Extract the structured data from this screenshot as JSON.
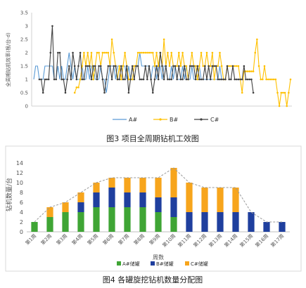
{
  "chart_data": [
    {
      "type": "line",
      "caption": "图3 项目全周期钻机工效图",
      "ylabel": "全周期钻机效率(根/台·d)",
      "ylim": [
        0,
        3.5
      ],
      "yticks": [
        0,
        0.5,
        1,
        1.5,
        2,
        2.5,
        3,
        3.5
      ],
      "grid": false,
      "legend_position": "bottom",
      "series": [
        {
          "name": "A#",
          "color": "#5b9bd5",
          "marker": "none",
          "values": [
            1,
            1.5,
            1.5,
            1,
            1,
            1,
            1.5,
            1.5,
            1.5,
            1.5,
            1.5,
            1,
            1,
            1.5,
            1,
            1.5,
            1,
            1,
            1.5,
            2,
            1.5,
            1,
            1.5,
            1,
            1,
            1,
            1.5,
            1,
            1,
            1.5,
            1,
            1.5,
            1.5,
            1,
            1,
            1,
            1.5,
            1,
            1,
            0.5,
            1,
            1.5,
            1.5,
            1.5,
            1,
            1.5,
            1.5,
            1.5,
            1.5,
            1.5,
            1,
            1.5,
            1,
            1.5,
            1.5,
            1.5,
            1.5,
            2,
            1.5,
            1.5,
            1.5,
            1.5,
            1.5,
            1,
            1.5,
            1.5,
            1,
            1.5,
            1.5,
            1,
            1.5,
            1.5,
            1,
            1,
            1.5,
            1,
            1.5,
            1,
            1,
            1,
            1.5,
            1,
            1.5,
            1,
            1,
            1.5,
            1,
            1,
            1.5,
            1.5,
            1,
            1,
            1,
            1,
            1,
            1,
            1,
            1,
            1,
            1,
            1.5,
            1,
            1,
            1
          ]
        },
        {
          "name": "B#",
          "color": "#ffc000",
          "marker": "dot",
          "x_start": 22,
          "values": [
            0.5,
            0.7,
            0.7,
            1,
            1.5,
            2,
            1.5,
            2,
            1.5,
            2,
            1,
            1.5,
            2,
            2,
            1.5,
            2,
            2,
            2,
            2,
            1.5,
            2.5,
            2,
            1.5,
            1,
            1.5,
            1,
            1.5,
            2,
            1.5,
            1,
            1,
            1,
            1.5,
            1.5,
            2,
            2,
            2,
            2,
            2,
            2,
            2,
            2,
            2,
            1.5,
            2,
            1.5,
            2,
            1.5,
            2.5,
            1.5,
            2,
            1.5,
            2,
            1.5,
            1.5,
            1.5,
            2,
            1.5,
            2,
            1.5,
            1.5,
            1,
            1.5,
            2,
            1.5,
            1.5,
            1,
            1.5,
            2,
            1.5,
            1.5,
            2,
            1.5,
            1.5,
            2,
            1,
            1.5,
            1.5,
            2,
            1.5,
            1,
            1,
            1.5,
            1.5,
            1.5,
            1.5,
            1.5,
            1.5,
            1.5,
            1,
            0.5,
            1.3,
            1.3,
            1.3,
            1.3,
            1.3,
            1.3,
            2,
            2.5,
            1.5,
            1,
            1,
            1.5,
            1,
            1,
            1,
            1,
            1,
            1,
            0.5,
            0,
            0.5,
            0.5,
            0.5,
            0,
            0.5,
            1
          ]
        },
        {
          "name": "C#",
          "color": "#404040",
          "marker": "dot",
          "x_start": 3,
          "values": [
            1,
            1,
            0.5,
            1,
            1,
            1,
            2,
            3,
            1,
            1,
            2,
            2,
            1,
            1,
            0.5,
            1,
            1.5,
            1,
            2,
            1.5,
            1,
            1.5,
            2,
            1,
            1,
            1.5,
            1.5,
            1.5,
            1,
            1.5,
            1.5,
            1,
            1.5,
            1.5,
            1,
            0.5,
            1,
            1.5,
            1.5,
            1,
            1.5,
            1.5,
            1,
            1,
            1.5,
            1,
            1,
            1.5,
            0.5,
            1,
            1.5,
            1,
            1.5,
            1.5,
            1,
            1,
            1,
            1.5,
            1,
            1.5,
            1,
            0.5,
            1,
            1.5,
            1,
            2,
            1.5,
            1,
            1.5,
            1,
            1,
            1,
            1.5,
            1.5,
            1,
            1.5,
            1,
            1,
            1.5,
            1,
            1,
            1.5,
            1.5,
            1.5,
            1,
            1.5,
            1,
            1,
            1,
            1.5,
            1,
            1.5,
            1,
            1.5,
            1.5,
            1.5,
            1,
            1,
            1,
            1,
            1,
            1.5,
            1,
            1,
            1.5,
            1,
            1,
            1,
            1,
            1,
            1.5,
            1,
            1,
            1,
            1,
            0.5
          ]
        }
      ]
    },
    {
      "type": "bar",
      "stacked": true,
      "caption": "图4 各罐旋挖钻机数量分配图",
      "ylabel": "钻机数量/台",
      "xlabel": "周数",
      "ylim": [
        0,
        14
      ],
      "yticks": [
        0,
        2,
        4,
        6,
        8,
        10,
        12,
        14
      ],
      "grid": false,
      "legend_position": "bottom",
      "categories": [
        "第1周",
        "第2周",
        "第3周",
        "第4周",
        "第5周",
        "第6周",
        "第7周",
        "第8周",
        "第9周",
        "第10周",
        "第11周",
        "第12周",
        "第13周",
        "第14周",
        "第15周",
        "第16周",
        "第17周"
      ],
      "series": [
        {
          "name": "A#储罐",
          "color": "#3fa535",
          "values": [
            2,
            3,
            4,
            4,
            5,
            5,
            5,
            5,
            4,
            3,
            0,
            0,
            0,
            0,
            0,
            0,
            0
          ]
        },
        {
          "name": "B#储罐",
          "color": "#1f3f9e",
          "values": [
            0,
            0,
            0,
            2,
            3,
            4,
            3,
            3,
            3,
            4,
            4,
            4,
            4,
            4,
            4,
            2,
            2
          ]
        },
        {
          "name": "C#储罐",
          "color": "#f7a51c",
          "values": [
            0,
            2,
            2,
            2,
            2,
            2,
            3,
            3,
            4,
            6,
            6,
            5,
            5,
            5,
            0,
            0,
            0
          ]
        }
      ],
      "totals_dashed_line": [
        2,
        5,
        6,
        8,
        10,
        11,
        11,
        11,
        11,
        13,
        10,
        9,
        9,
        9,
        4,
        2,
        2
      ]
    }
  ]
}
